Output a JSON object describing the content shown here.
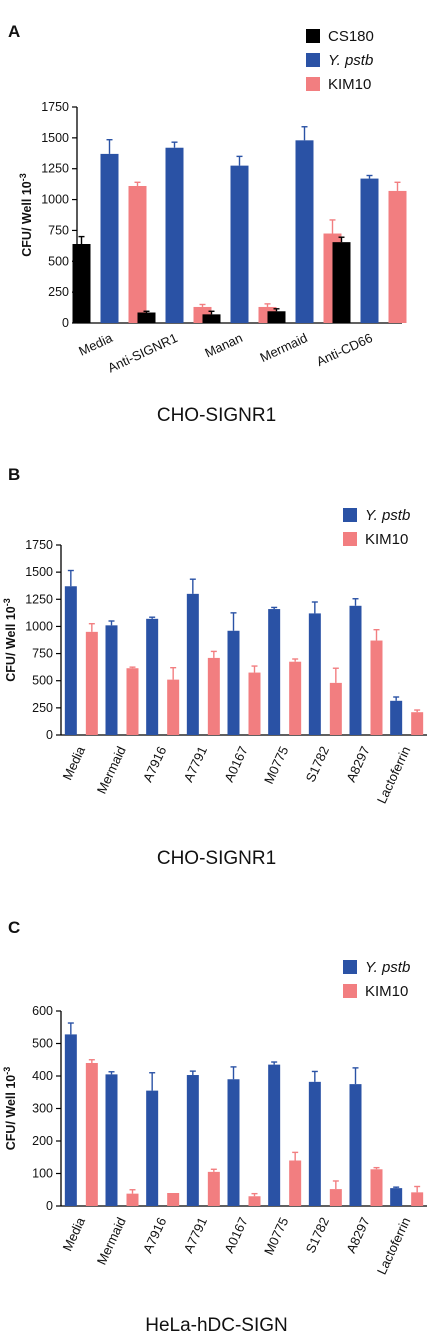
{
  "colors": {
    "CS180": "#000000",
    "Y. pstb": "#2a52a5",
    "KIM10": "#f27e80",
    "axis": "#000000"
  },
  "chart_data": [
    {
      "type": "bar",
      "panel": "A",
      "title": "CHO-SIGNR1",
      "ylabel": "CFU/ Well",
      "ylabel_unit": "10",
      "ylabel_exp": "-3",
      "ylim": [
        0,
        1750
      ],
      "yticks": [
        0,
        250,
        500,
        750,
        1000,
        1250,
        1500,
        1750
      ],
      "categories": [
        "Media",
        "Anti-SIGNR1",
        "Manan",
        "Mermaid",
        "Anti-CD66"
      ],
      "legend": [
        {
          "label": "CS180",
          "italic": false
        },
        {
          "label": "Y. pstb",
          "italic": true
        },
        {
          "label": "KIM10",
          "italic": false
        }
      ],
      "series": [
        {
          "name": "CS180",
          "values": [
            640,
            85,
            70,
            95,
            655
          ],
          "errors": [
            60,
            10,
            25,
            20,
            40
          ]
        },
        {
          "name": "Y. pstb",
          "values": [
            1370,
            1420,
            1275,
            1480,
            1170
          ],
          "errors": [
            115,
            45,
            75,
            110,
            25
          ]
        },
        {
          "name": "KIM10",
          "values": [
            1110,
            130,
            130,
            725,
            1070
          ],
          "errors": [
            30,
            20,
            25,
            110,
            70
          ]
        }
      ]
    },
    {
      "type": "bar",
      "panel": "B",
      "title": "CHO-SIGNR1",
      "ylabel": "CFU/ Well",
      "ylabel_unit": "10",
      "ylabel_exp": "-3",
      "ylim": [
        0,
        1750
      ],
      "yticks": [
        0,
        250,
        500,
        750,
        1000,
        1250,
        1500,
        1750
      ],
      "categories": [
        "Media",
        "Mermaid",
        "A7916",
        "A7791",
        "A0167",
        "M0775",
        "S1782",
        "A8297",
        "Lactoferrin"
      ],
      "legend": [
        {
          "label": "Y. pstb",
          "italic": true
        },
        {
          "label": "KIM10",
          "italic": false
        }
      ],
      "series": [
        {
          "name": "Y. pstb",
          "values": [
            1370,
            1010,
            1070,
            1300,
            960,
            1160,
            1120,
            1190,
            315
          ],
          "errors": [
            145,
            40,
            15,
            135,
            165,
            15,
            105,
            65,
            35
          ]
        },
        {
          "name": "KIM10",
          "values": [
            950,
            615,
            510,
            710,
            575,
            675,
            480,
            870,
            210
          ],
          "errors": [
            75,
            10,
            110,
            60,
            60,
            25,
            135,
            100,
            20
          ]
        }
      ]
    },
    {
      "type": "bar",
      "panel": "C",
      "title": "HeLa-hDC-SIGN",
      "ylabel": "CFU/ Well",
      "ylabel_unit": "10",
      "ylabel_exp": "-3",
      "ylim": [
        0,
        600
      ],
      "yticks": [
        0,
        100,
        200,
        300,
        400,
        500,
        600
      ],
      "categories": [
        "Media",
        "Mermaid",
        "A7916",
        "A7791",
        "A0167",
        "M0775",
        "S1782",
        "A8297",
        "Lactoferrin"
      ],
      "legend": [
        {
          "label": "Y. pstb",
          "italic": true
        },
        {
          "label": "KIM10",
          "italic": false
        }
      ],
      "series": [
        {
          "name": "Y. pstb",
          "values": [
            528,
            405,
            355,
            403,
            390,
            435,
            382,
            375,
            55
          ],
          "errors": [
            35,
            8,
            55,
            12,
            38,
            8,
            32,
            50,
            3
          ]
        },
        {
          "name": "KIM10",
          "values": [
            440,
            38,
            40,
            105,
            30,
            140,
            52,
            113,
            42
          ],
          "errors": [
            10,
            12,
            0,
            8,
            8,
            25,
            25,
            5,
            18
          ]
        }
      ]
    }
  ]
}
